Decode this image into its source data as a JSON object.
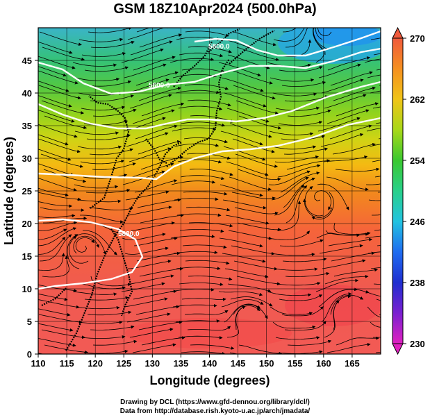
{
  "title": "GSM 18Z10Apr2024 (500.0hPa)",
  "map": {
    "x_axis": {
      "label": "Longitude (degrees)",
      "min": 110,
      "max": 170,
      "ticks": [
        "110",
        "115",
        "120",
        "125",
        "130",
        "135",
        "140",
        "145",
        "150",
        "155",
        "160",
        "165"
      ]
    },
    "y_axis": {
      "label": "Latitude  (degrees)",
      "min": 0,
      "max": 50,
      "ticks": [
        "0",
        "5",
        "10",
        "15",
        "20",
        "25",
        "30",
        "35",
        "40",
        "45"
      ]
    },
    "contours": {
      "color": "#ffffff",
      "labels": [
        "5600.0",
        "5800.0",
        "5880.0"
      ]
    },
    "field": {
      "gradient": [
        {
          "lat": 0,
          "color": "#f25a55"
        },
        {
          "lat": 10,
          "color": "#f05a50"
        },
        {
          "lat": 19,
          "color": "#f5643a"
        },
        {
          "lat": 25,
          "color": "#f28a1c"
        },
        {
          "lat": 29,
          "color": "#f4ba12"
        },
        {
          "lat": 33,
          "color": "#cfd414"
        },
        {
          "lat": 37,
          "color": "#8fd31e"
        },
        {
          "lat": 41,
          "color": "#52c843"
        },
        {
          "lat": 45,
          "color": "#35c277"
        },
        {
          "lat": 50,
          "color": "#3ab4c8"
        }
      ]
    }
  },
  "colorbar": {
    "ticks": [
      "230",
      "238",
      "246",
      "254",
      "262",
      "270"
    ],
    "min": 230,
    "max": 270,
    "stops": [
      "#e020c0",
      "#7a1fd0",
      "#1f2ed0",
      "#1f6cf0",
      "#22c3e0",
      "#28d08a",
      "#3ac830",
      "#a8d818",
      "#f0c418",
      "#f59020",
      "#f05a3c"
    ]
  },
  "credits": {
    "line1": "Drawing by DCL (https://www.gfd-dennou.org/library/dcl/)",
    "line2": "Data from http://database.rish.kyoto-u.ac.jp/arch/jmadata/"
  }
}
